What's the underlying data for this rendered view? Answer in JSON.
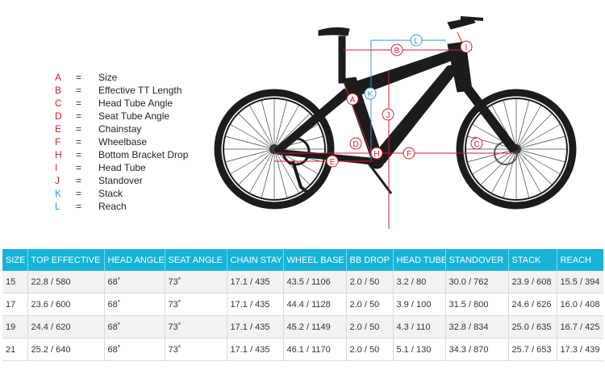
{
  "legend": [
    {
      "letter": "A",
      "label": "Size",
      "color": "#d21e2b"
    },
    {
      "letter": "B",
      "label": "Effective TT Length",
      "color": "#d21e2b"
    },
    {
      "letter": "C",
      "label": "Head Tube Angle",
      "color": "#d21e2b"
    },
    {
      "letter": "D",
      "label": "Seat Tube Angle",
      "color": "#d21e2b"
    },
    {
      "letter": "E",
      "label": "Chainstay",
      "color": "#d21e2b"
    },
    {
      "letter": "F",
      "label": "Wheelbase",
      "color": "#d21e2b"
    },
    {
      "letter": "H",
      "label": "Bottom Bracket Drop",
      "color": "#d21e2b"
    },
    {
      "letter": "I",
      "label": "Head Tube",
      "color": "#d21e2b"
    },
    {
      "letter": "J",
      "label": "Standover",
      "color": "#d21e2b"
    },
    {
      "letter": "K",
      "label": "Stack",
      "color": "#2a9bd4"
    },
    {
      "letter": "L",
      "label": "Reach",
      "color": "#2a9bd4"
    }
  ],
  "legend_separator": "=",
  "diagram_labels": {
    "A": "A",
    "B": "B",
    "C": "C",
    "D": "D",
    "E": "E",
    "F": "F",
    "H": "H",
    "I": "I",
    "J": "J",
    "K": "K",
    "L": "L"
  },
  "colors": {
    "header_bg": "#17b3d9",
    "measure_red": "#d21e2b",
    "measure_blue": "#2a9bd4",
    "frame": "#1c1c1c"
  },
  "table": {
    "headers": [
      "SIZE",
      "TOP EFFECTIVE",
      "HEAD ANGLE",
      "SEAT ANGLE",
      "CHAIN STAY",
      "WHEEL BASE",
      "BB DROP",
      "HEAD TUBE",
      "STANDOVER",
      "STACK",
      "REACH"
    ],
    "rows": [
      [
        "15",
        "22.8 / 580",
        "68˚",
        "73˚",
        "17.1 / 435",
        "43.5 / 1106",
        "2.0 / 50",
        "3.2 / 80",
        "30.0 / 762",
        "23.9 / 608",
        "15.5 / 394"
      ],
      [
        "17",
        "23.6 / 600",
        "68˚",
        "73˚",
        "17.1 / 435",
        "44.4 / 1128",
        "2.0 / 50",
        "3.9 / 100",
        "31.5 / 800",
        "24.6 / 626",
        "16.0 / 408"
      ],
      [
        "19",
        "24.4 / 620",
        "68˚",
        "73˚",
        "17.1 / 435",
        "45.2 / 1149",
        "2.0 / 50",
        "4.3 / 110",
        "32.8 / 834",
        "25.0 / 635",
        "16.7 / 425"
      ],
      [
        "21",
        "25.2 / 640",
        "68˚",
        "73˚",
        "17.1 / 435",
        "46.1 / 1170",
        "2.0 / 50",
        "5.1 / 130",
        "34.3 / 870",
        "25.7 / 653",
        "17.3 / 439"
      ]
    ]
  }
}
